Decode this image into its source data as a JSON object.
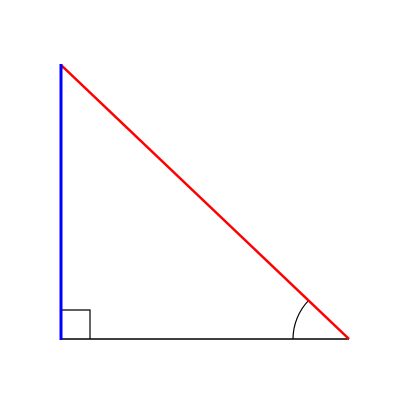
{
  "diagram": {
    "type": "right-triangle",
    "right_angle_marker": true,
    "marked_angle_arc": true,
    "colors": {
      "vertical_leg": "#0000ff",
      "hypotenuse": "#ff0000",
      "horizontal_leg": "#000000",
      "right_angle_marker": "#000000",
      "angle_arc": "#000000"
    }
  }
}
